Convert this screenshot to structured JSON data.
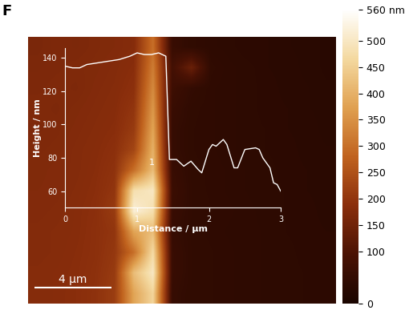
{
  "panel_label": "F",
  "chart_data": [
    {
      "type": "heatmap",
      "cells": [
        [
          165,
          170,
          168,
          172,
          175,
          180,
          300,
          60,
          45,
          40,
          38,
          35,
          35,
          33,
          32,
          30
        ],
        [
          168,
          170,
          172,
          174,
          178,
          185,
          320,
          80,
          140,
          45,
          40,
          38,
          35,
          34,
          32,
          30
        ],
        [
          170,
          172,
          170,
          176,
          180,
          190,
          340,
          70,
          50,
          42,
          40,
          38,
          36,
          34,
          33,
          31
        ],
        [
          172,
          170,
          174,
          178,
          182,
          200,
          360,
          60,
          45,
          42,
          40,
          38,
          36,
          35,
          33,
          32
        ],
        [
          170,
          172,
          176,
          180,
          185,
          210,
          380,
          55,
          44,
          42,
          40,
          38,
          37,
          35,
          34,
          32
        ],
        [
          172,
          174,
          178,
          182,
          190,
          230,
          400,
          55,
          44,
          42,
          40,
          38,
          37,
          36,
          34,
          33
        ],
        [
          174,
          176,
          178,
          184,
          195,
          300,
          420,
          60,
          45,
          43,
          41,
          39,
          38,
          36,
          35,
          33
        ],
        [
          175,
          176,
          180,
          186,
          200,
          480,
          500,
          65,
          46,
          43,
          41,
          39,
          38,
          37,
          35,
          34
        ],
        [
          176,
          178,
          182,
          188,
          210,
          520,
          480,
          60,
          46,
          44,
          42,
          40,
          38,
          37,
          36,
          34
        ],
        [
          178,
          180,
          182,
          190,
          200,
          380,
          420,
          55,
          45,
          43,
          41,
          40,
          39,
          37,
          36,
          35
        ],
        [
          178,
          180,
          184,
          190,
          205,
          300,
          470,
          60,
          46,
          44,
          42,
          40,
          39,
          38,
          36,
          35
        ],
        [
          180,
          182,
          185,
          192,
          210,
          420,
          500,
          60,
          46,
          44,
          42,
          40,
          39,
          38,
          37,
          35
        ],
        [
          180,
          182,
          186,
          194,
          215,
          380,
          460,
          55,
          45,
          44,
          42,
          40,
          39,
          38,
          37,
          36
        ]
      ],
      "xlim": [
        0,
        16
      ],
      "ylim": [
        0,
        13
      ],
      "tick_labels": false,
      "colorbar_range": [
        0,
        560
      ],
      "colorbar_ticks": [
        0,
        100,
        150,
        200,
        250,
        300,
        350,
        400,
        450,
        500,
        {
          "value": 560,
          "label": "560 nm"
        }
      ],
      "scale_bar": {
        "length": 4,
        "label": "4 µm"
      }
    },
    {
      "type": "line",
      "x_label": "Distance / µm",
      "y_label": "Height / nm",
      "x": [
        0,
        0.1,
        0.2,
        0.3,
        0.45,
        0.6,
        0.75,
        0.9,
        1.0,
        1.1,
        1.2,
        1.3,
        1.35,
        1.4,
        1.45,
        1.55,
        1.65,
        1.75,
        1.85,
        1.9,
        2.0,
        2.05,
        2.1,
        2.2,
        2.25,
        2.35,
        2.4,
        2.5,
        2.65,
        2.7,
        2.75,
        2.85,
        2.9,
        2.95,
        3.0
      ],
      "values": [
        135,
        134,
        134,
        136,
        137,
        138,
        139,
        141,
        143,
        142,
        142,
        143,
        142,
        141,
        79,
        79,
        75,
        78,
        73,
        71,
        85,
        88,
        87,
        91,
        88,
        74,
        74,
        85,
        86,
        85,
        80,
        74,
        65,
        64,
        60
      ],
      "color": "#ffffff",
      "xlim": [
        0,
        3
      ],
      "ylim": [
        50,
        146
      ],
      "xticks": [
        0,
        1,
        2,
        3
      ],
      "yticks": [
        60,
        80,
        100,
        120,
        140
      ],
      "annotations": [
        {
          "text": "1",
          "x": 1.2,
          "y": 77
        }
      ]
    }
  ]
}
